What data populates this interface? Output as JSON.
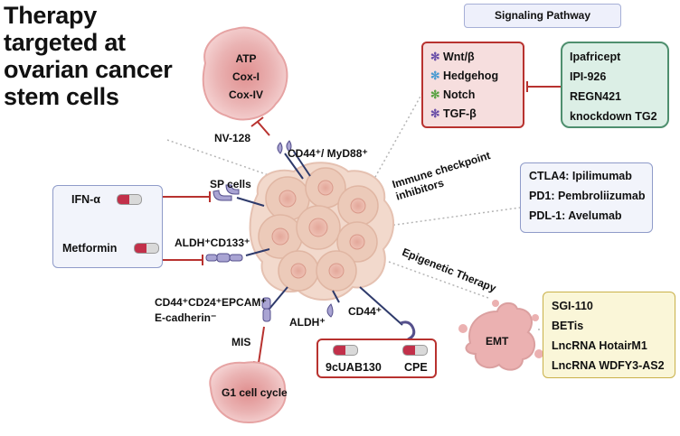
{
  "title": [
    "Therapy",
    "targeted at",
    "ovarian cancer",
    "stem cells"
  ],
  "signaling_pathway": {
    "header": "Signaling Pathway",
    "pathways": [
      "Wnt/β",
      "Hedgehog",
      "Notch",
      "TGF-β"
    ],
    "inhibitors": [
      "Ipafricept",
      "IPI-926",
      "REGN421",
      "knockdown TG2"
    ]
  },
  "mitochondria_cell": {
    "items": [
      "ATP",
      "Cox-I",
      "Cox-IV"
    ]
  },
  "labels": {
    "nv128": "NV-128",
    "cd44_myd88": "CD44⁺/ MyD88⁺",
    "sp_cells": "SP cells",
    "aldh_cd133": "ALDH⁺CD133⁺",
    "cd44_cd24_epcam": "CD44⁺CD24⁺EPCAM⁺",
    "ecadherin": "E-cadherin⁻",
    "mis": "MIS",
    "aldh": "ALDH⁺",
    "cd44": "CD44⁺",
    "g1": "G1 cell cycle",
    "emt": "EMT",
    "immune_line1": "Immune checkpoint",
    "immune_line2": "inhibitors",
    "epigenetic": "Epigenetic Therapy"
  },
  "left_drugs": [
    "IFN-α",
    "Metformin"
  ],
  "bottom_drugs": [
    "9cUAB130",
    "CPE"
  ],
  "immune_checkpoint": [
    "CTLA4: Ipilimumab",
    "PD1: Pembroliizumab",
    "PDL-1: Avelumab"
  ],
  "epigenetic_drugs": [
    "SGI-110",
    "BETis",
    "LncRNA HotairM1",
    "LncRNA WDFY3-AS2"
  ],
  "colors": {
    "inhibit_line": "#b8322f",
    "signaling_fill": "#f6dede",
    "signaling_border": "#b8322f",
    "inhibitor_fill": "#dcefe6",
    "inhibitor_border": "#4e8f6e",
    "immune_fill": "#f2f4fb",
    "immune_border": "#8f9bc9",
    "epi_fill": "#faf6d8",
    "epi_border": "#c9b14a",
    "cell_fill": "#f2d6c8",
    "pink_cell": "#e9b0b0"
  }
}
